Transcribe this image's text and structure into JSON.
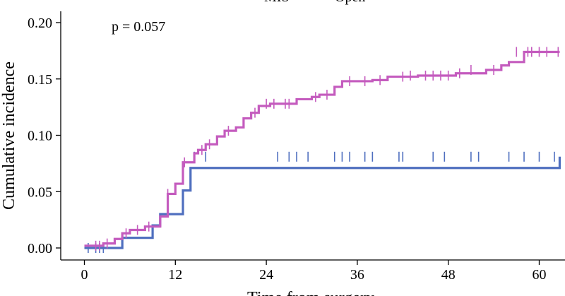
{
  "chart_data": {
    "type": "line",
    "title": "",
    "xlabel": "Time from surgery",
    "ylabel": "Cumulative incidence",
    "annotation": "p = 0.057",
    "xlim": [
      -8,
      63
    ],
    "ylim": [
      -0.011,
      0.211
    ],
    "x_ticks": [
      0,
      12,
      24,
      36,
      48,
      60
    ],
    "x_tick_labels": [
      "0",
      "12",
      "24",
      "36",
      "48",
      "60"
    ],
    "y_ticks": [
      0.0,
      0.05,
      0.1,
      0.15,
      0.2
    ],
    "y_tick_labels": [
      "0.00",
      "0.05",
      "0.10",
      "0.15",
      "0.20"
    ],
    "legend": {
      "placement": "top",
      "entries": [
        "MIS",
        "Open"
      ]
    },
    "grid": false,
    "series": [
      {
        "name": "MIS",
        "color": "#4f6fbf",
        "step": true,
        "x": [
          0,
          5,
          9,
          10,
          13,
          14,
          62.7
        ],
        "y": [
          0.0,
          0.009,
          0.02,
          0.03,
          0.051,
          0.071,
          0.081
        ],
        "censor_x": [
          0.5,
          1.5,
          2.0,
          2.5,
          14.5,
          16,
          25.5,
          27,
          28,
          29.5,
          33,
          34,
          35,
          37,
          38,
          41.5,
          42,
          46,
          47.5,
          51,
          52,
          56,
          58,
          60,
          62
        ],
        "censor_y": [
          0.0,
          0.0,
          0.0,
          0.0,
          0.081,
          0.081,
          0.081,
          0.081,
          0.081,
          0.081,
          0.081,
          0.081,
          0.081,
          0.081,
          0.081,
          0.081,
          0.081,
          0.081,
          0.081,
          0.081,
          0.081,
          0.081,
          0.081,
          0.081,
          0.081
        ]
      },
      {
        "name": "Open",
        "color": "#c45bbe",
        "step": true,
        "x": [
          0,
          2.5,
          4,
          5,
          6,
          8,
          10,
          11,
          12,
          13,
          14.5,
          15,
          16,
          17.5,
          18.5,
          20,
          21,
          22,
          23,
          24.5,
          28,
          30,
          31,
          33,
          34,
          38,
          40,
          44,
          49,
          53,
          55,
          56,
          58,
          62.7
        ],
        "y": [
          0.002,
          0.004,
          0.008,
          0.013,
          0.016,
          0.019,
          0.028,
          0.048,
          0.057,
          0.076,
          0.084,
          0.087,
          0.092,
          0.099,
          0.104,
          0.107,
          0.115,
          0.12,
          0.126,
          0.128,
          0.132,
          0.134,
          0.136,
          0.143,
          0.148,
          0.149,
          0.152,
          0.153,
          0.155,
          0.158,
          0.162,
          0.165,
          0.174,
          0.174
        ],
        "censor_x": [
          1.5,
          2.0,
          3,
          5.5,
          7,
          8.5,
          11,
          13.2,
          15.5,
          16.5,
          19,
          22.5,
          24,
          25,
          26.5,
          27,
          30.5,
          32,
          35,
          37,
          39,
          42,
          43,
          45,
          46,
          47,
          48,
          49.5,
          51,
          54,
          57,
          58.5,
          59,
          60,
          61,
          62.5
        ],
        "censor_y": [
          0.002,
          0.002,
          0.004,
          0.013,
          0.016,
          0.019,
          0.048,
          0.076,
          0.087,
          0.092,
          0.104,
          0.12,
          0.128,
          0.128,
          0.128,
          0.128,
          0.134,
          0.136,
          0.148,
          0.148,
          0.149,
          0.152,
          0.153,
          0.153,
          0.153,
          0.153,
          0.153,
          0.155,
          0.158,
          0.158,
          0.174,
          0.174,
          0.174,
          0.174,
          0.174,
          0.174
        ]
      }
    ]
  }
}
